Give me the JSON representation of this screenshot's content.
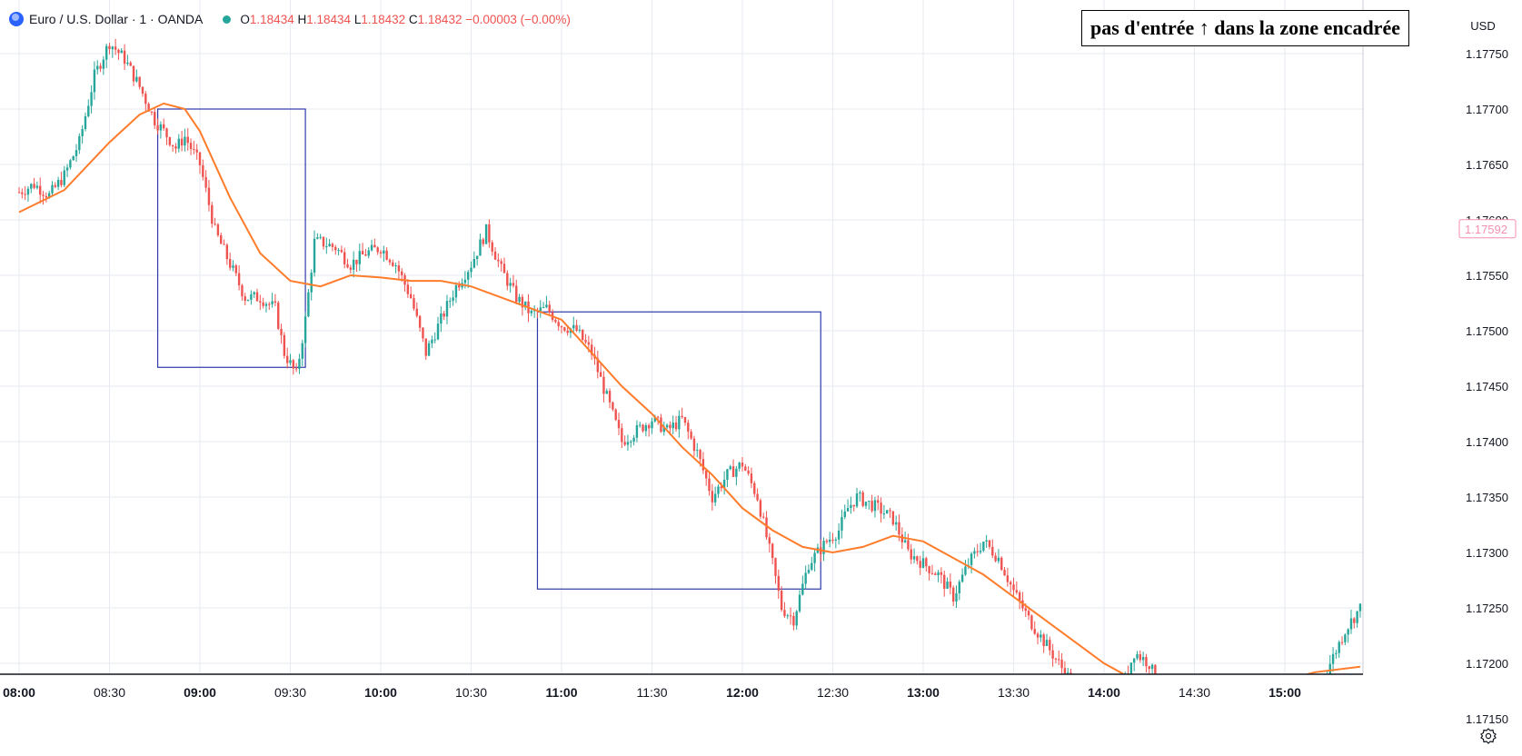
{
  "header": {
    "symbol": "Euro / U.S. Dollar · 1 · OANDA",
    "o_label": "O",
    "o_value": "1.18434",
    "h_label": "H",
    "h_value": "1.18434",
    "l_label": "L",
    "l_value": "1.18432",
    "c_label": "C",
    "c_value": "1.18432",
    "change": "−0.00003 (−0.00%)"
  },
  "annotation": "pas d'entrée ↑ dans la zone encadrée",
  "currency_button": "USD",
  "price_tag": "1.17592",
  "colors": {
    "up": "#26a69a",
    "down": "#ef5350",
    "ma": "#ff7c2b",
    "box": "#2e3aa8",
    "grid": "#e7eaf0",
    "price_tag": "#f48fb1"
  },
  "icons": {
    "settings": "gear-icon",
    "logo": "euro-dollar-flag-icon"
  },
  "chart_data": {
    "type": "candlestick",
    "title": "",
    "xlabel": "",
    "ylabel": "",
    "x_ticks": [
      "08:00",
      "08:30",
      "09:00",
      "09:30",
      "10:00",
      "10:30",
      "11:00",
      "11:30",
      "12:00",
      "12:30",
      "13:00",
      "13:30",
      "14:00",
      "14:30",
      "15:00"
    ],
    "y_ticks": [
      "1.17750",
      "1.17700",
      "1.17650",
      "1.17600",
      "1.17550",
      "1.17500",
      "1.17450",
      "1.17400",
      "1.17350",
      "1.17300",
      "1.17250",
      "1.17200",
      "1.17150"
    ],
    "ylim": [
      1.1711,
      1.1779
    ],
    "xlim_minutes": [
      0,
      445
    ],
    "grid": true,
    "moving_average": {
      "color": "#ff7c2b",
      "points": [
        [
          0,
          1.17607
        ],
        [
          15,
          1.17627
        ],
        [
          30,
          1.1767
        ],
        [
          40,
          1.17695
        ],
        [
          48,
          1.17705
        ],
        [
          55,
          1.177
        ],
        [
          60,
          1.1768
        ],
        [
          70,
          1.1762
        ],
        [
          80,
          1.1757
        ],
        [
          90,
          1.17545
        ],
        [
          100,
          1.1754
        ],
        [
          110,
          1.1755
        ],
        [
          120,
          1.17548
        ],
        [
          130,
          1.17545
        ],
        [
          140,
          1.17545
        ],
        [
          150,
          1.1754
        ],
        [
          160,
          1.1753
        ],
        [
          170,
          1.1752
        ],
        [
          180,
          1.1751
        ],
        [
          190,
          1.1748
        ],
        [
          200,
          1.1745
        ],
        [
          210,
          1.17425
        ],
        [
          220,
          1.17395
        ],
        [
          230,
          1.1737
        ],
        [
          240,
          1.1734
        ],
        [
          250,
          1.1732
        ],
        [
          260,
          1.17305
        ],
        [
          270,
          1.173
        ],
        [
          280,
          1.17305
        ],
        [
          290,
          1.17315
        ],
        [
          300,
          1.1731
        ],
        [
          310,
          1.17295
        ],
        [
          320,
          1.1728
        ],
        [
          330,
          1.1726
        ],
        [
          340,
          1.1724
        ],
        [
          350,
          1.1722
        ],
        [
          360,
          1.172
        ],
        [
          370,
          1.17185
        ],
        [
          380,
          1.17175
        ],
        [
          385,
          1.17168
        ],
        [
          390,
          1.1717
        ],
        [
          400,
          1.17175
        ],
        [
          410,
          1.1718
        ],
        [
          420,
          1.17185
        ],
        [
          430,
          1.17192
        ],
        [
          445,
          1.17197
        ]
      ]
    },
    "path_points": [
      [
        0,
        1.17625
      ],
      [
        5,
        1.17632
      ],
      [
        10,
        1.17622
      ],
      [
        15,
        1.1764
      ],
      [
        20,
        1.1767
      ],
      [
        25,
        1.1773
      ],
      [
        30,
        1.1776
      ],
      [
        35,
        1.17745
      ],
      [
        40,
        1.1772
      ],
      [
        45,
        1.1769
      ],
      [
        48,
        1.1768
      ],
      [
        52,
        1.17665
      ],
      [
        55,
        1.17675
      ],
      [
        60,
        1.1765
      ],
      [
        65,
        1.1759
      ],
      [
        70,
        1.1756
      ],
      [
        75,
        1.1753
      ],
      [
        80,
        1.1753
      ],
      [
        85,
        1.1752
      ],
      [
        88,
        1.1748
      ],
      [
        92,
        1.1746
      ],
      [
        95,
        1.1751
      ],
      [
        98,
        1.1758
      ],
      [
        100,
        1.1758
      ],
      [
        105,
        1.17575
      ],
      [
        110,
        1.1756
      ],
      [
        115,
        1.1757
      ],
      [
        120,
        1.17575
      ],
      [
        125,
        1.1756
      ],
      [
        130,
        1.1753
      ],
      [
        135,
        1.1748
      ],
      [
        140,
        1.1751
      ],
      [
        145,
        1.1754
      ],
      [
        150,
        1.1756
      ],
      [
        155,
        1.1759
      ],
      [
        160,
        1.17555
      ],
      [
        165,
        1.1753
      ],
      [
        170,
        1.17515
      ],
      [
        175,
        1.1752
      ],
      [
        180,
        1.17505
      ],
      [
        185,
        1.175
      ],
      [
        190,
        1.1748
      ],
      [
        195,
        1.1744
      ],
      [
        200,
        1.174
      ],
      [
        205,
        1.1741
      ],
      [
        210,
        1.1742
      ],
      [
        215,
        1.1741
      ],
      [
        220,
        1.1742
      ],
      [
        225,
        1.1739
      ],
      [
        230,
        1.1735
      ],
      [
        235,
        1.1737
      ],
      [
        240,
        1.1738
      ],
      [
        245,
        1.1735
      ],
      [
        250,
        1.1729
      ],
      [
        253,
        1.1725
      ],
      [
        257,
        1.1724
      ],
      [
        262,
        1.1729
      ],
      [
        268,
        1.1731
      ],
      [
        272,
        1.1732
      ],
      [
        275,
        1.1734
      ],
      [
        278,
        1.1735
      ],
      [
        285,
        1.1734
      ],
      [
        290,
        1.1733
      ],
      [
        295,
        1.173
      ],
      [
        300,
        1.1729
      ],
      [
        305,
        1.1728
      ],
      [
        310,
        1.1726
      ],
      [
        315,
        1.1729
      ],
      [
        320,
        1.1731
      ],
      [
        325,
        1.17295
      ],
      [
        330,
        1.17265
      ],
      [
        335,
        1.1724
      ],
      [
        340,
        1.1722
      ],
      [
        345,
        1.172
      ],
      [
        350,
        1.1718
      ],
      [
        355,
        1.1717
      ],
      [
        360,
        1.1715
      ],
      [
        365,
        1.1717
      ],
      [
        370,
        1.1721
      ],
      [
        375,
        1.172
      ],
      [
        380,
        1.17165
      ],
      [
        385,
        1.1716
      ],
      [
        390,
        1.17175
      ],
      [
        395,
        1.1717
      ],
      [
        400,
        1.1715
      ],
      [
        405,
        1.1714
      ],
      [
        410,
        1.1715
      ],
      [
        415,
        1.1716
      ],
      [
        420,
        1.1715
      ],
      [
        425,
        1.1713
      ],
      [
        428,
        1.17145
      ],
      [
        432,
        1.1718
      ],
      [
        435,
        1.172
      ],
      [
        440,
        1.1723
      ],
      [
        445,
        1.1725
      ]
    ],
    "boxes": [
      {
        "x0": 46,
        "x1": 95,
        "y_top": 1.177,
        "y_bottom": 1.17467
      },
      {
        "x0": 172,
        "x1": 266,
        "y_top": 1.17517,
        "y_bottom": 1.17267
      }
    ],
    "last_price": 1.17592
  }
}
